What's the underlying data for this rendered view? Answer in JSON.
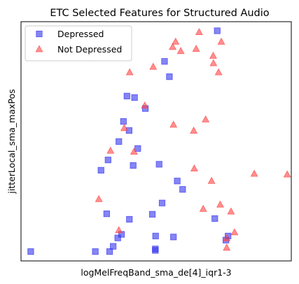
{
  "chart_data": {
    "type": "scatter",
    "title": "ETC Selected Features for Structured Audio",
    "xlabel": "logMelFreqBand_sma_de[4]_iqr1-3",
    "ylabel": "jitterLocal_sma_maxPos",
    "xticks": "none",
    "yticks": "none",
    "xlim": [
      0,
      100
    ],
    "ylim": [
      0,
      100
    ],
    "grid": false,
    "legend_position": "top-left",
    "series": [
      {
        "name": "Depressed",
        "marker": "square",
        "color": "#3333ee",
        "points": [
          [
            72.6,
            96.2
          ],
          [
            53.1,
            83.4
          ],
          [
            54.9,
            77.0
          ],
          [
            39.2,
            68.9
          ],
          [
            42.0,
            68.3
          ],
          [
            46.0,
            63.7
          ],
          [
            37.9,
            58.3
          ],
          [
            40.0,
            54.5
          ],
          [
            36.2,
            49.9
          ],
          [
            43.2,
            47.0
          ],
          [
            32.2,
            42.2
          ],
          [
            29.6,
            37.9
          ],
          [
            41.5,
            39.9
          ],
          [
            51.1,
            40.4
          ],
          [
            57.8,
            33.4
          ],
          [
            59.8,
            29.9
          ],
          [
            52.2,
            24.2
          ],
          [
            31.7,
            19.7
          ],
          [
            48.6,
            19.5
          ],
          [
            40.1,
            17.4
          ],
          [
            71.7,
            17.7
          ],
          [
            37.2,
            11.1
          ],
          [
            35.8,
            9.6
          ],
          [
            49.8,
            10.4
          ],
          [
            56.4,
            10.0
          ],
          [
            76.6,
            10.4
          ],
          [
            75.8,
            8.7
          ],
          [
            34.1,
            6.1
          ],
          [
            3.6,
            3.9
          ],
          [
            27.5,
            3.9
          ],
          [
            32.8,
            3.9
          ],
          [
            49.7,
            5.0
          ],
          [
            49.7,
            4.4
          ]
        ]
      },
      {
        "name": "Not Depressed",
        "marker": "triangle",
        "color": "#ff4444",
        "points": [
          [
            57.2,
            91.6
          ],
          [
            65.9,
            95.6
          ],
          [
            74.1,
            91.6
          ],
          [
            56.1,
            89.4
          ],
          [
            59.1,
            87.7
          ],
          [
            64.8,
            88.6
          ],
          [
            71.1,
            85.7
          ],
          [
            71.2,
            82.6
          ],
          [
            48.9,
            81.1
          ],
          [
            40.2,
            78.8
          ],
          [
            73.1,
            78.8
          ],
          [
            45.8,
            64.9
          ],
          [
            68.3,
            59.1
          ],
          [
            56.4,
            56.9
          ],
          [
            38.2,
            55.5
          ],
          [
            63.9,
            54.4
          ],
          [
            41.8,
            45.6
          ],
          [
            33.1,
            46.0
          ],
          [
            64.1,
            38.6
          ],
          [
            70.5,
            33.4
          ],
          [
            86.3,
            36.4
          ],
          [
            98.5,
            36.1
          ],
          [
            28.8,
            25.8
          ],
          [
            73.7,
            23.5
          ],
          [
            67.4,
            21.7
          ],
          [
            77.7,
            20.6
          ],
          [
            36.2,
            12.8
          ],
          [
            79.0,
            11.9
          ],
          [
            76.1,
            9.4
          ],
          [
            76.1,
            5.5
          ]
        ]
      }
    ]
  }
}
